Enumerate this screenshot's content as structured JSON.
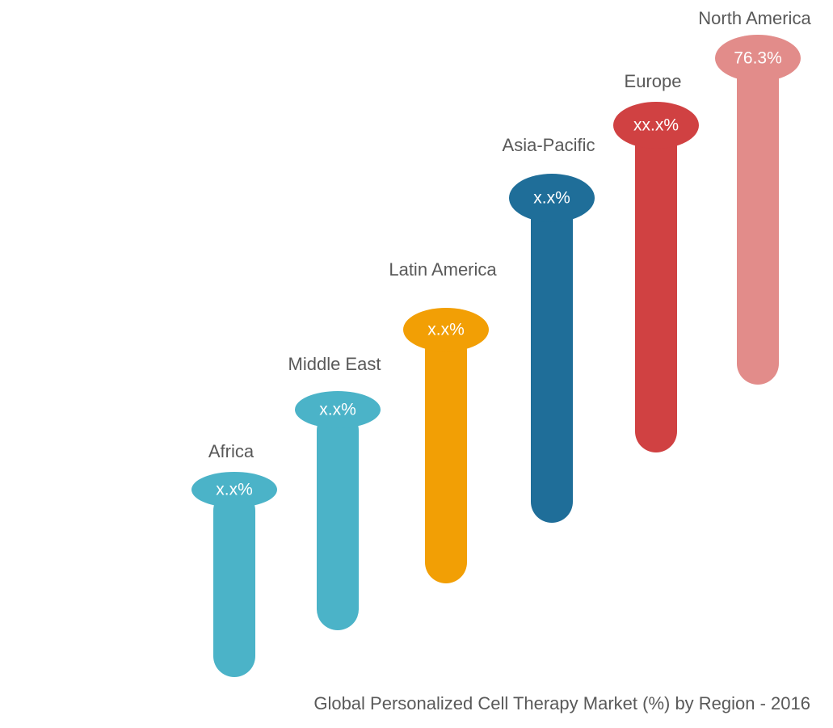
{
  "title": "Global Personalized Cell Therapy Market (%) by Region - 2016",
  "regions": [
    {
      "name": "Africa",
      "value": "x.x%",
      "color": "#4bb3c8"
    },
    {
      "name": "Middle East",
      "value": "x.x%",
      "color": "#4bb3c8"
    },
    {
      "name": "Latin America",
      "value": "x.x%",
      "color": "#f29f05"
    },
    {
      "name": "Asia-Pacific",
      "value": "x.x%",
      "color": "#1f6e99"
    },
    {
      "name": "Europe",
      "value": "xx.x%",
      "color": "#d04142"
    },
    {
      "name": "North America",
      "value": "76.3%",
      "color": "#e28c8a"
    }
  ]
}
